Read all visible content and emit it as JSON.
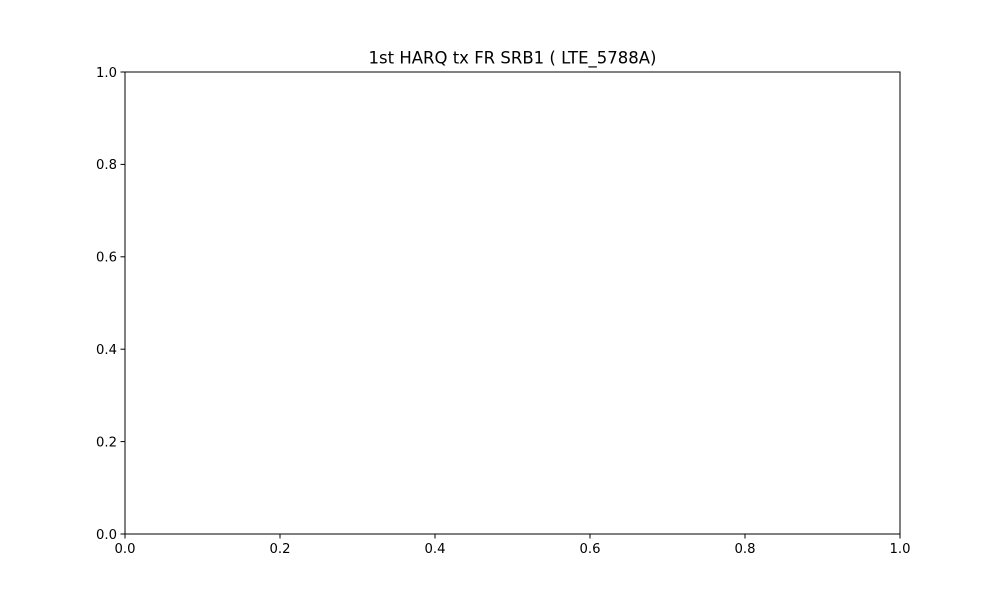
{
  "chart_data": {
    "type": "line",
    "title": "1st HARQ tx FR SRB1 ( LTE_5788A)",
    "xlabel": "",
    "ylabel": "",
    "xlim": [
      0.0,
      1.0
    ],
    "ylim": [
      0.0,
      1.0
    ],
    "x_ticks": [
      0.0,
      0.2,
      0.4,
      0.6,
      0.8,
      1.0
    ],
    "y_ticks": [
      0.0,
      0.2,
      0.4,
      0.6,
      0.8,
      1.0
    ],
    "x_tick_labels": [
      "0.0",
      "0.2",
      "0.4",
      "0.6",
      "0.8",
      "1.0"
    ],
    "y_tick_labels": [
      "0.0",
      "0.2",
      "0.4",
      "0.6",
      "0.8",
      "1.0"
    ],
    "series": [],
    "grid": false,
    "legend": "none"
  }
}
